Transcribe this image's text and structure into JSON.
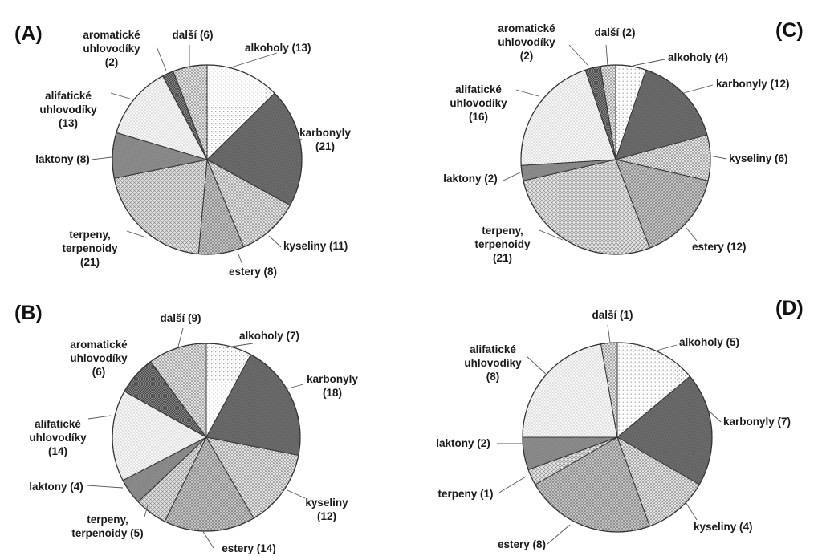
{
  "chart_data": [
    {
      "type": "pie",
      "panel": "(A)",
      "slices": [
        {
          "label": "alkoholy (13)",
          "value": 13,
          "pattern": "dots-light"
        },
        {
          "label": "karbonyly (21)",
          "value": 21,
          "pattern": "dark"
        },
        {
          "label": "kyseliny (11)",
          "value": 11,
          "pattern": "dots-mid"
        },
        {
          "label": "estery (8)",
          "value": 8,
          "pattern": "check"
        },
        {
          "label": "terpeny, terpenoidy (21)",
          "value": 21,
          "pattern": "cross"
        },
        {
          "label": "laktony (8)",
          "value": 8,
          "pattern": "mid"
        },
        {
          "label": "alifatické uhlovodíky (13)",
          "value": 13,
          "pattern": "dots-fine"
        },
        {
          "label": "aromatické uhlovodíky (2)",
          "value": 2,
          "pattern": "grid-dark"
        },
        {
          "label": "další (6)",
          "value": 6,
          "pattern": "dots-mid"
        }
      ]
    },
    {
      "type": "pie",
      "panel": "(B)",
      "slices": [
        {
          "label": "alkoholy (7)",
          "value": 7,
          "pattern": "dots-light"
        },
        {
          "label": "karbonyly (18)",
          "value": 18,
          "pattern": "dark"
        },
        {
          "label": "kyseliny (12)",
          "value": 12,
          "pattern": "dots-mid"
        },
        {
          "label": "estery (14)",
          "value": 14,
          "pattern": "check"
        },
        {
          "label": "terpeny, terpenoidy (5)",
          "value": 5,
          "pattern": "cross"
        },
        {
          "label": "laktony (4)",
          "value": 4,
          "pattern": "mid"
        },
        {
          "label": "alifatické uhlovodíky (14)",
          "value": 14,
          "pattern": "dots-fine"
        },
        {
          "label": "aromatické uhlovodíky (6)",
          "value": 6,
          "pattern": "grid-dark"
        },
        {
          "label": "další (9)",
          "value": 9,
          "pattern": "dots-mid"
        }
      ]
    },
    {
      "type": "pie",
      "panel": "(C)",
      "slices": [
        {
          "label": "alkoholy (4)",
          "value": 4,
          "pattern": "dots-light"
        },
        {
          "label": "karbonyly (12)",
          "value": 12,
          "pattern": "dark"
        },
        {
          "label": "kyseliny (6)",
          "value": 6,
          "pattern": "dots-mid"
        },
        {
          "label": "estery (12)",
          "value": 12,
          "pattern": "check"
        },
        {
          "label": "terpeny, terpenoidy (21)",
          "value": 21,
          "pattern": "cross"
        },
        {
          "label": "laktony (2)",
          "value": 2,
          "pattern": "mid"
        },
        {
          "label": "alifatické uhlovodíky (16)",
          "value": 16,
          "pattern": "dots-fine"
        },
        {
          "label": "aromatické uhlovodíky (2)",
          "value": 2,
          "pattern": "grid-dark"
        },
        {
          "label": "další (2)",
          "value": 2,
          "pattern": "dots-mid"
        }
      ]
    },
    {
      "type": "pie",
      "panel": "(D)",
      "slices": [
        {
          "label": "alkoholy (5)",
          "value": 5,
          "pattern": "dots-light"
        },
        {
          "label": "karbonyly (7)",
          "value": 7,
          "pattern": "dark"
        },
        {
          "label": "kyseliny (4)",
          "value": 4,
          "pattern": "dots-mid"
        },
        {
          "label": "estery (8)",
          "value": 8,
          "pattern": "check"
        },
        {
          "label": "terpeny (1)",
          "value": 1,
          "pattern": "cross"
        },
        {
          "label": "laktony (2)",
          "value": 2,
          "pattern": "mid"
        },
        {
          "label": "alifatické uhlovodíky (8)",
          "value": 8,
          "pattern": "dots-fine"
        },
        {
          "label": "další (1)",
          "value": 1,
          "pattern": "dots-mid"
        }
      ]
    }
  ]
}
